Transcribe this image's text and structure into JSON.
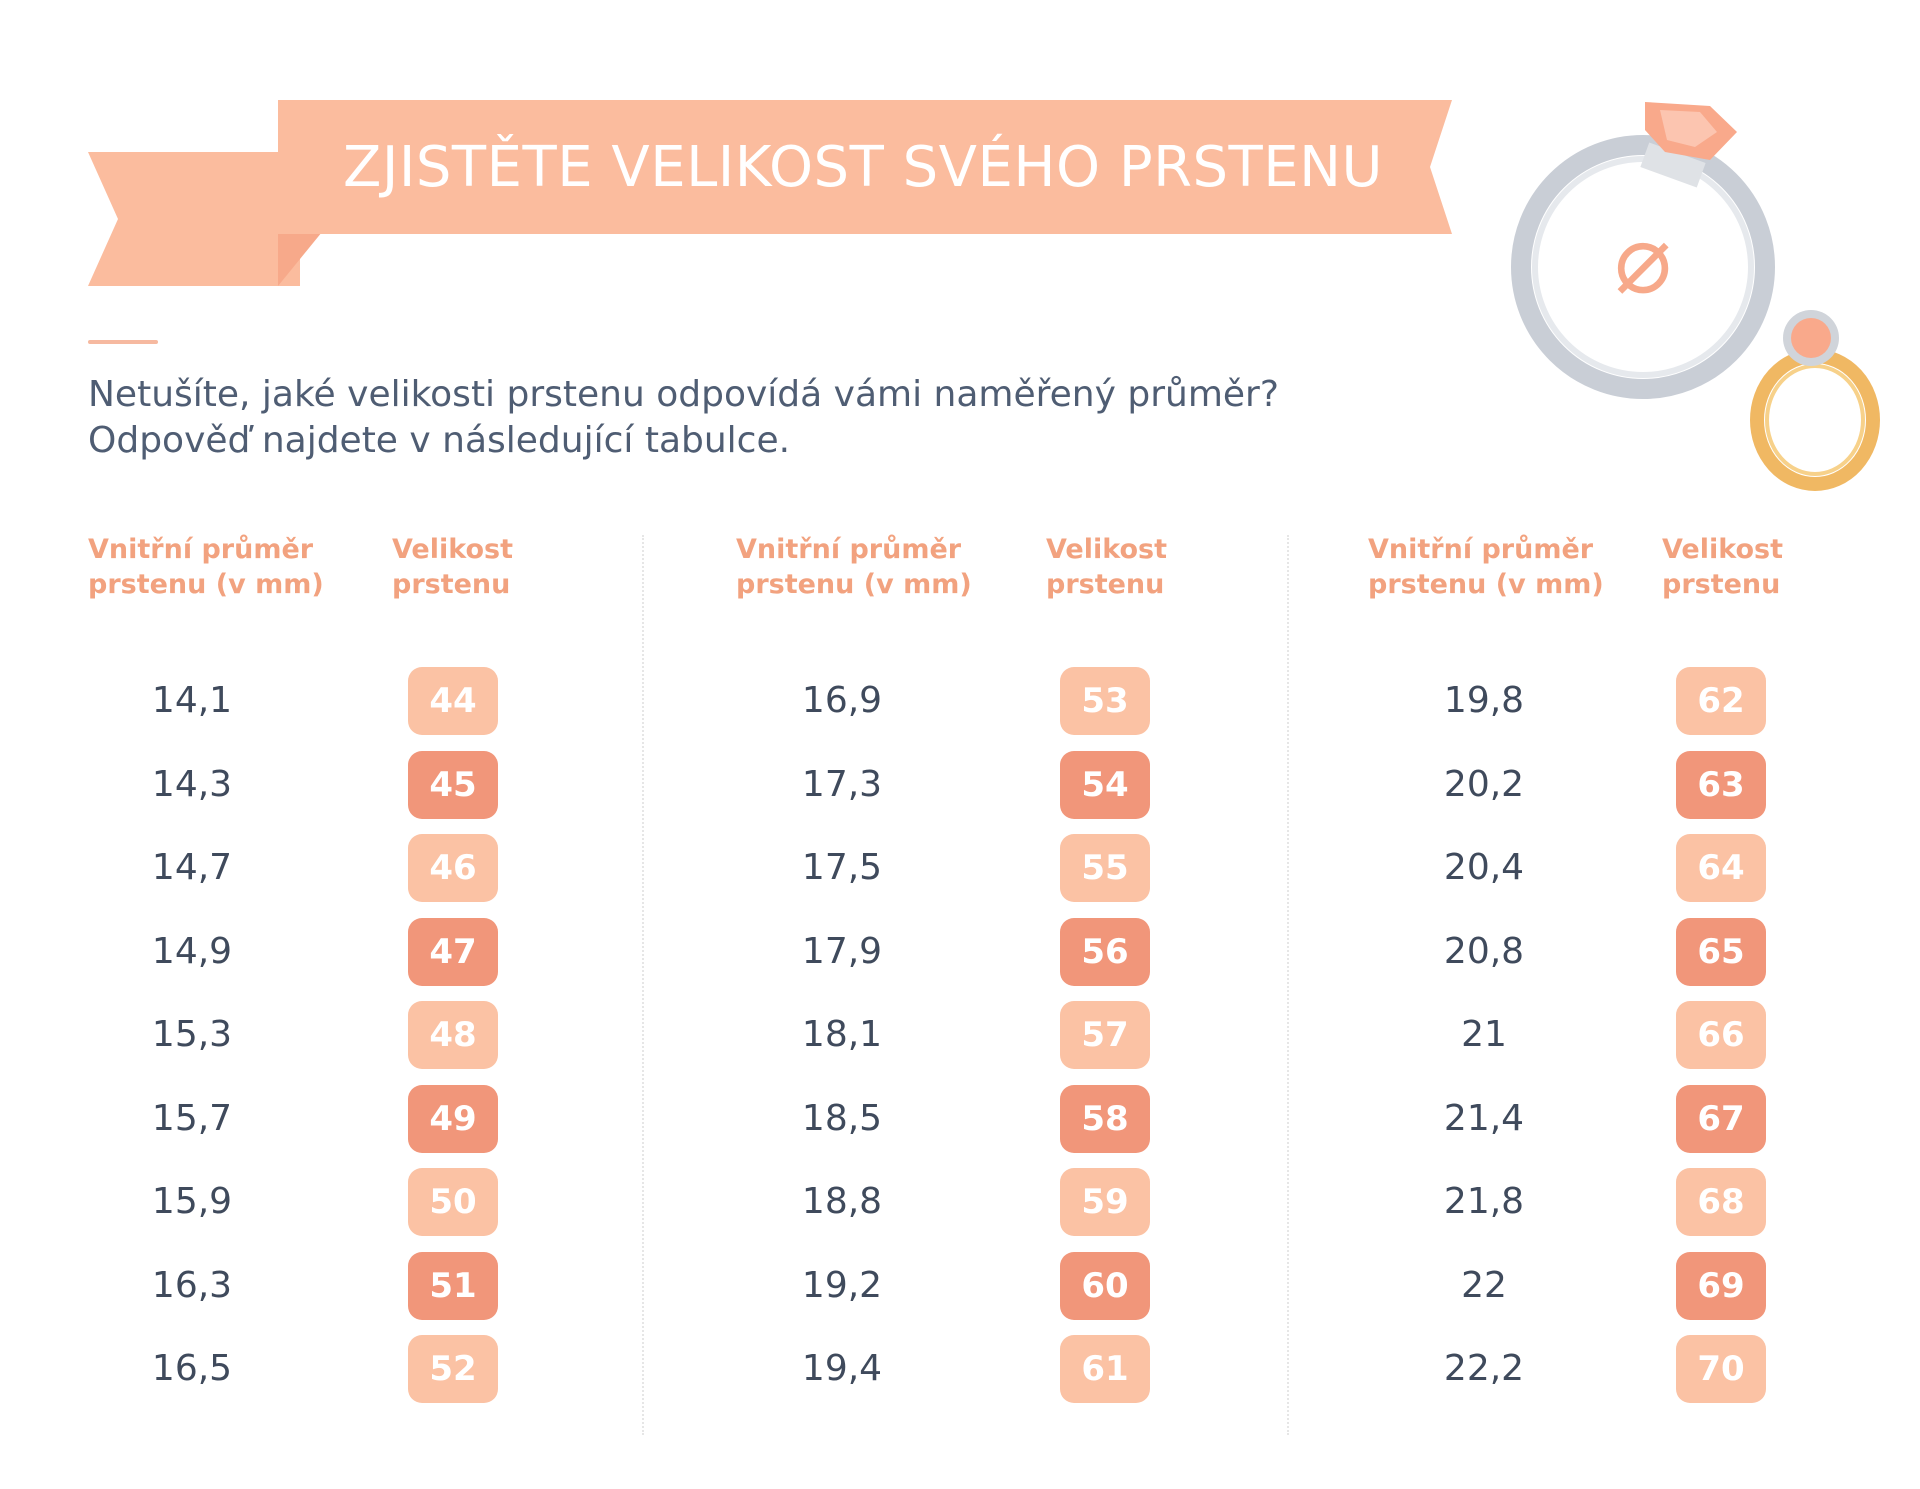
{
  "banner": {
    "title": "ZJISTĚTE VELIKOST SVÉHO PRSTENU"
  },
  "intro": {
    "line1": "Netušíte, jaké velikosti prstenu odpovídá vámi naměřený průměr?",
    "line2": "Odpověď najdete v následující tabulce."
  },
  "headers": {
    "diameter_line1": "Vnitřní průměr",
    "diameter_line2": "prstenu (v mm)",
    "size_line1": "Velikost",
    "size_line2": "prstenu"
  },
  "diameter_symbol": "⌀",
  "colors": {
    "banner": "#fbbc9e",
    "banner_fold": "#f7a98a",
    "heading": "#f2a27f",
    "badge_light": "#fbc2a4",
    "badge_dark": "#f1967a",
    "text": "#3f4a5c"
  },
  "icons": [
    "silver-ring-icon",
    "gold-ring-icon",
    "diameter-icon"
  ],
  "table": {
    "columns": [
      {
        "rows": [
          {
            "mm": "14,1",
            "size": "44"
          },
          {
            "mm": "14,3",
            "size": "45"
          },
          {
            "mm": "14,7",
            "size": "46"
          },
          {
            "mm": "14,9",
            "size": "47"
          },
          {
            "mm": "15,3",
            "size": "48"
          },
          {
            "mm": "15,7",
            "size": "49"
          },
          {
            "mm": "15,9",
            "size": "50"
          },
          {
            "mm": "16,3",
            "size": "51"
          },
          {
            "mm": "16,5",
            "size": "52"
          }
        ]
      },
      {
        "rows": [
          {
            "mm": "16,9",
            "size": "53"
          },
          {
            "mm": "17,3",
            "size": "54"
          },
          {
            "mm": "17,5",
            "size": "55"
          },
          {
            "mm": "17,9",
            "size": "56"
          },
          {
            "mm": "18,1",
            "size": "57"
          },
          {
            "mm": "18,5",
            "size": "58"
          },
          {
            "mm": "18,8",
            "size": "59"
          },
          {
            "mm": "19,2",
            "size": "60"
          },
          {
            "mm": "19,4",
            "size": "61"
          }
        ]
      },
      {
        "rows": [
          {
            "mm": "19,8",
            "size": "62"
          },
          {
            "mm": "20,2",
            "size": "63"
          },
          {
            "mm": "20,4",
            "size": "64"
          },
          {
            "mm": "20,8",
            "size": "65"
          },
          {
            "mm": "21",
            "size": "66"
          },
          {
            "mm": "21,4",
            "size": "67"
          },
          {
            "mm": "21,8",
            "size": "68"
          },
          {
            "mm": "22",
            "size": "69"
          },
          {
            "mm": "22,2",
            "size": "70"
          }
        ]
      }
    ]
  }
}
